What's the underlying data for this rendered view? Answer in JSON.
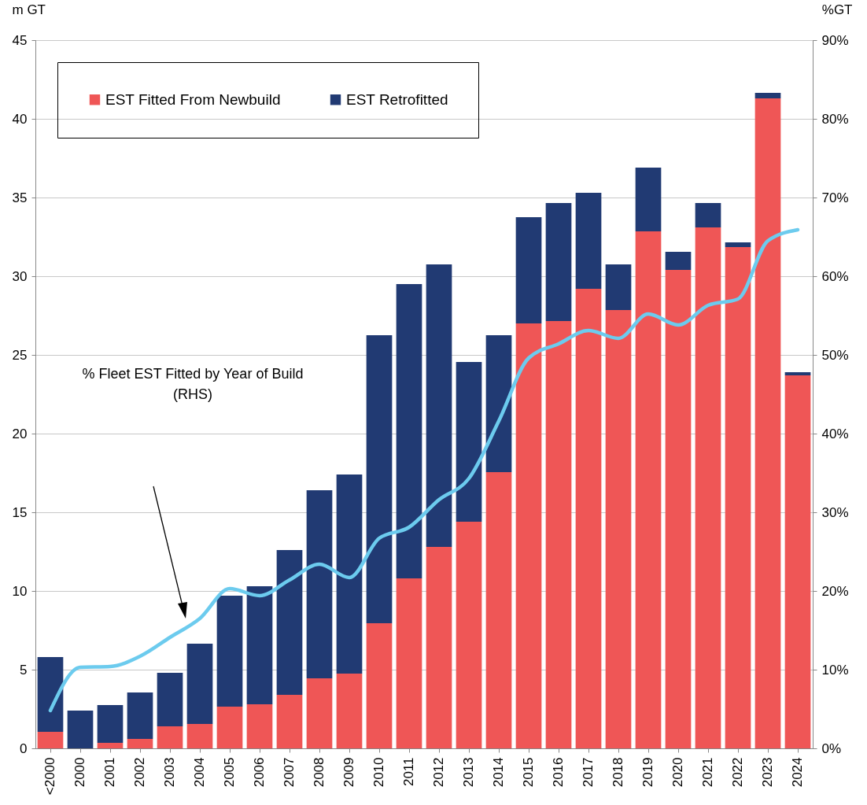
{
  "chart_data": {
    "type": "bar",
    "stacked": true,
    "categories": [
      "<2000",
      "2000",
      "2001",
      "2002",
      "2003",
      "2004",
      "2005",
      "2006",
      "2007",
      "2008",
      "2009",
      "2010",
      "2011",
      "2012",
      "2013",
      "2014",
      "2015",
      "2016",
      "2017",
      "2018",
      "2019",
      "2020",
      "2021",
      "2022",
      "2023",
      "2024"
    ],
    "series": [
      {
        "name": "EST Fitted From Newbuild",
        "color": "#ef5656",
        "values": [
          1.05,
          0,
          0.35,
          0.6,
          1.4,
          1.55,
          2.65,
          2.8,
          3.4,
          4.45,
          4.75,
          7.95,
          10.8,
          12.8,
          14.4,
          17.55,
          27.0,
          27.15,
          29.2,
          27.85,
          32.85,
          30.4,
          33.1,
          31.85,
          41.3,
          23.7
        ]
      },
      {
        "name": "EST Retrofitted",
        "color": "#213a73",
        "values": [
          4.75,
          2.4,
          2.4,
          2.95,
          3.4,
          5.1,
          7.05,
          7.5,
          9.2,
          11.95,
          12.65,
          18.3,
          18.7,
          17.95,
          10.15,
          8.7,
          6.75,
          7.5,
          6.1,
          2.9,
          4.05,
          1.15,
          1.55,
          0.3,
          0.35,
          0.2
        ]
      },
      {
        "type": "line",
        "axis": "y2",
        "color": "#6ccbee",
        "values": [
          4.8,
          10.3,
          10.4,
          11.7,
          14.1,
          16.5,
          20.3,
          19.4,
          21.4,
          23.4,
          21.7,
          26.7,
          28.1,
          31.6,
          34.3,
          41.6,
          49.6,
          51.4,
          53.1,
          52.1,
          55.2,
          53.8,
          56.3,
          57.1,
          64.5,
          65.9
        ]
      }
    ],
    "ylabel": "m GT",
    "y2label": "%GT",
    "ylim": [
      0,
      45
    ],
    "yticks": [
      0,
      5,
      10,
      15,
      20,
      25,
      30,
      35,
      40,
      45
    ],
    "y2lim": [
      0,
      90
    ],
    "y2ticks": [
      {
        "value": 0,
        "label": "0%"
      },
      {
        "value": 10,
        "label": "10%"
      },
      {
        "value": 20,
        "label": "20%"
      },
      {
        "value": 30,
        "label": "30%"
      },
      {
        "value": 40,
        "label": "40%"
      },
      {
        "value": 50,
        "label": "50%"
      },
      {
        "value": 60,
        "label": "60%"
      },
      {
        "value": 70,
        "label": "70%"
      },
      {
        "value": 80,
        "label": "80%"
      },
      {
        "value": 90,
        "label": "90%"
      }
    ],
    "grid": "y",
    "legend": "top left",
    "annotations": [
      "% Fleet EST Fitted by Year of Build\n(RHS)"
    ]
  }
}
